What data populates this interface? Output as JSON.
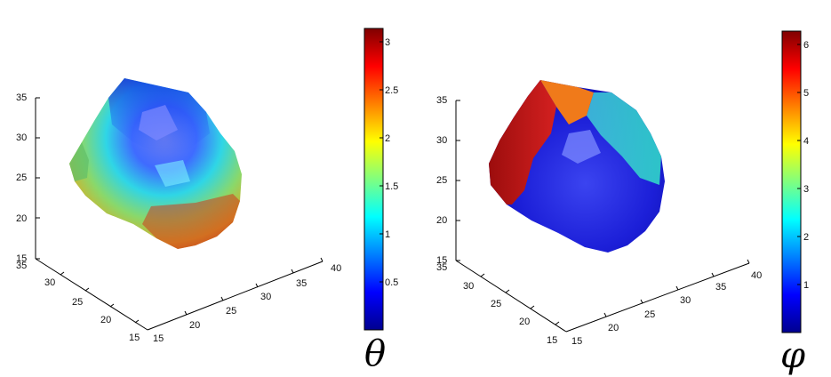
{
  "chart_data": [
    {
      "type": "surface3d",
      "colormap": "jet",
      "colorbar_label": "θ",
      "colorbar_range": [
        0,
        3.14159
      ],
      "colorbar_ticks": [
        "0.5",
        "1",
        "1.5",
        "2",
        "2.5",
        "3"
      ],
      "zlim": [
        15,
        35
      ],
      "z_ticks": [
        "15",
        "20",
        "25",
        "30",
        "35"
      ],
      "y_ticks": [
        "35",
        "30",
        "25",
        "20",
        "15"
      ],
      "x_ticks": [
        "15",
        "20",
        "25",
        "30",
        "35",
        "40"
      ],
      "theme": "theta"
    },
    {
      "type": "surface3d",
      "colormap": "jet",
      "colorbar_label": "φ",
      "colorbar_range": [
        0,
        6.28319
      ],
      "colorbar_ticks": [
        "1",
        "2",
        "3",
        "4",
        "5",
        "6"
      ],
      "zlim": [
        15,
        35
      ],
      "z_ticks": [
        "15",
        "20",
        "25",
        "30",
        "35"
      ],
      "y_ticks": [
        "35",
        "30",
        "25",
        "20",
        "15"
      ],
      "x_ticks": [
        "15",
        "20",
        "25",
        "30",
        "35",
        "40"
      ],
      "theme": "phi"
    }
  ],
  "colors": {
    "jet": [
      "#00008f",
      "#0000ff",
      "#0080ff",
      "#00ffff",
      "#80ff80",
      "#ffff00",
      "#ff8000",
      "#ff0000",
      "#800000"
    ]
  }
}
